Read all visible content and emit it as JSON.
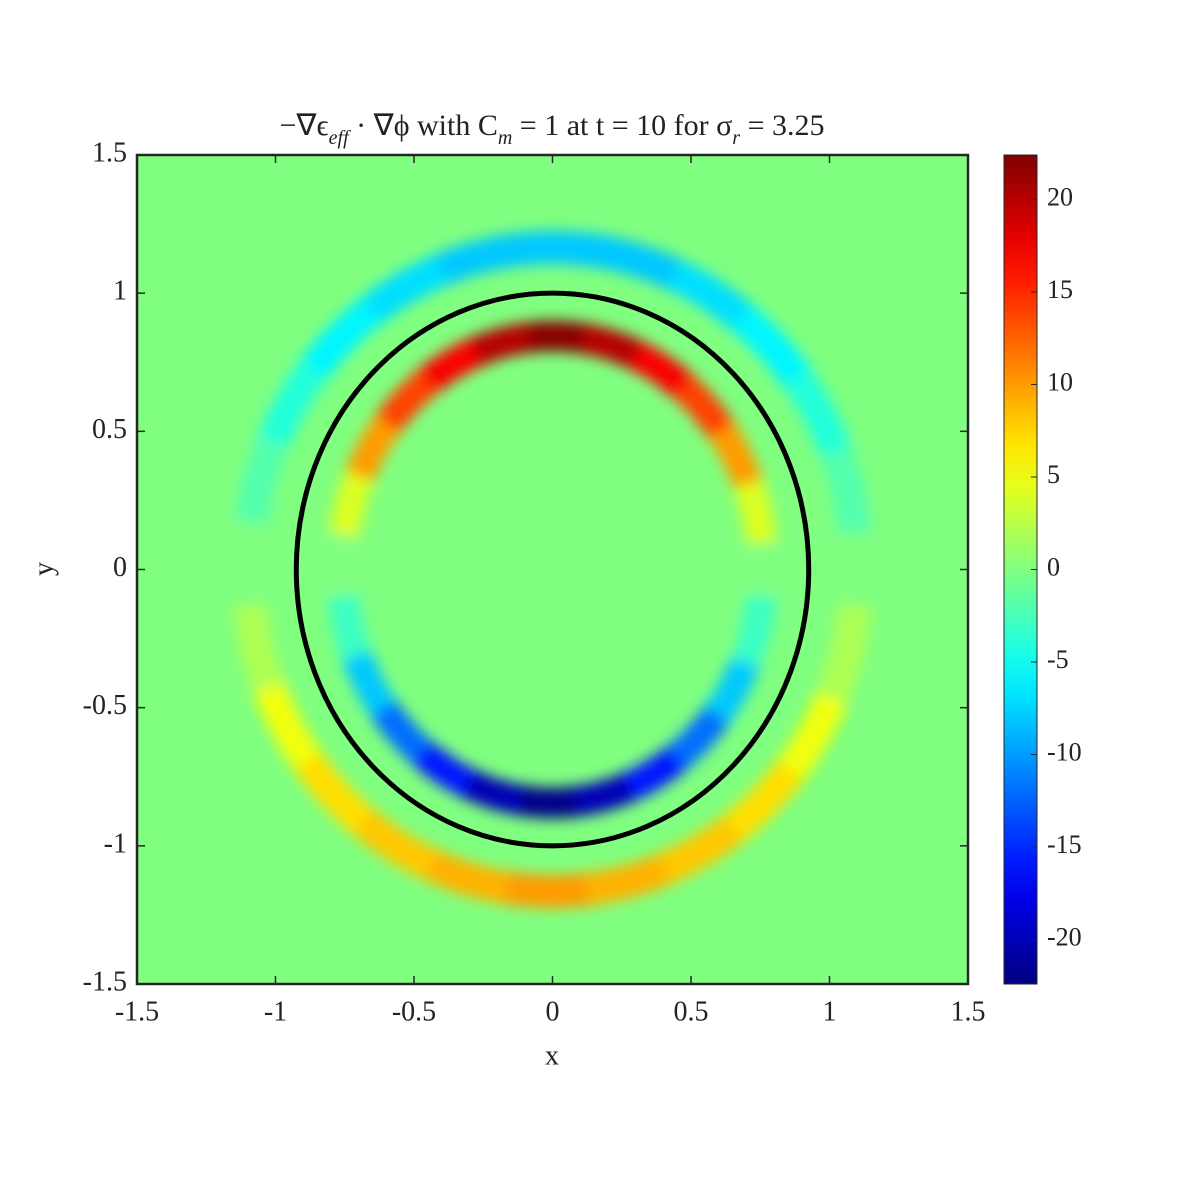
{
  "chart_data": {
    "type": "heatmap",
    "title": [
      "−∇ϵ",
      {
        "sub": "eff"
      },
      " · ∇ϕ with C",
      {
        "sub": "m"
      },
      " = 1 at t = 10 for σ",
      {
        "sub": "r"
      },
      " = 3.25"
    ],
    "xlabel": "x",
    "ylabel": "y",
    "xlim": [
      -1.5,
      1.5
    ],
    "ylim": [
      -1.5,
      1.5
    ],
    "xticks": [
      -1.5,
      -1,
      -0.5,
      0,
      0.5,
      1,
      1.5
    ],
    "yticks": [
      -1.5,
      -1,
      -0.5,
      0,
      0.5,
      1,
      1.5
    ],
    "colormap": "jet",
    "clim": [
      -22.4,
      22.4
    ],
    "cticks": [
      -20,
      -15,
      -10,
      -5,
      0,
      5,
      10,
      15,
      20
    ],
    "interface": {
      "rx": 0.925,
      "ry": 1.0,
      "color": "#000000"
    },
    "rings": [
      {
        "rx": 0.76,
        "ry": 0.845,
        "width": 0.11,
        "angles": [
          0,
          15,
          30,
          45,
          60,
          75,
          90,
          105,
          120,
          135,
          150,
          165,
          180,
          195,
          210,
          225,
          240,
          255,
          270,
          285,
          300,
          315,
          330,
          345
        ],
        "values": [
          0,
          4,
          10,
          14,
          17,
          20,
          22,
          20,
          17,
          14,
          10,
          4,
          0,
          -3,
          -8,
          -12,
          -16,
          -20,
          -22,
          -20,
          -16,
          -12,
          -8,
          -3
        ]
      },
      {
        "rx": 1.1,
        "ry": 1.165,
        "width": 0.12,
        "angles": [
          0,
          15,
          30,
          45,
          60,
          75,
          90,
          105,
          120,
          135,
          150,
          165,
          180,
          195,
          210,
          225,
          240,
          255,
          270,
          285,
          300,
          315,
          330,
          345
        ],
        "values": [
          0,
          -2,
          -4,
          -6,
          -7,
          -8,
          -8,
          -8,
          -7,
          -6,
          -4,
          -2,
          0,
          2,
          5,
          7,
          8,
          9,
          10,
          9,
          8,
          7,
          5,
          2
        ]
      }
    ]
  }
}
